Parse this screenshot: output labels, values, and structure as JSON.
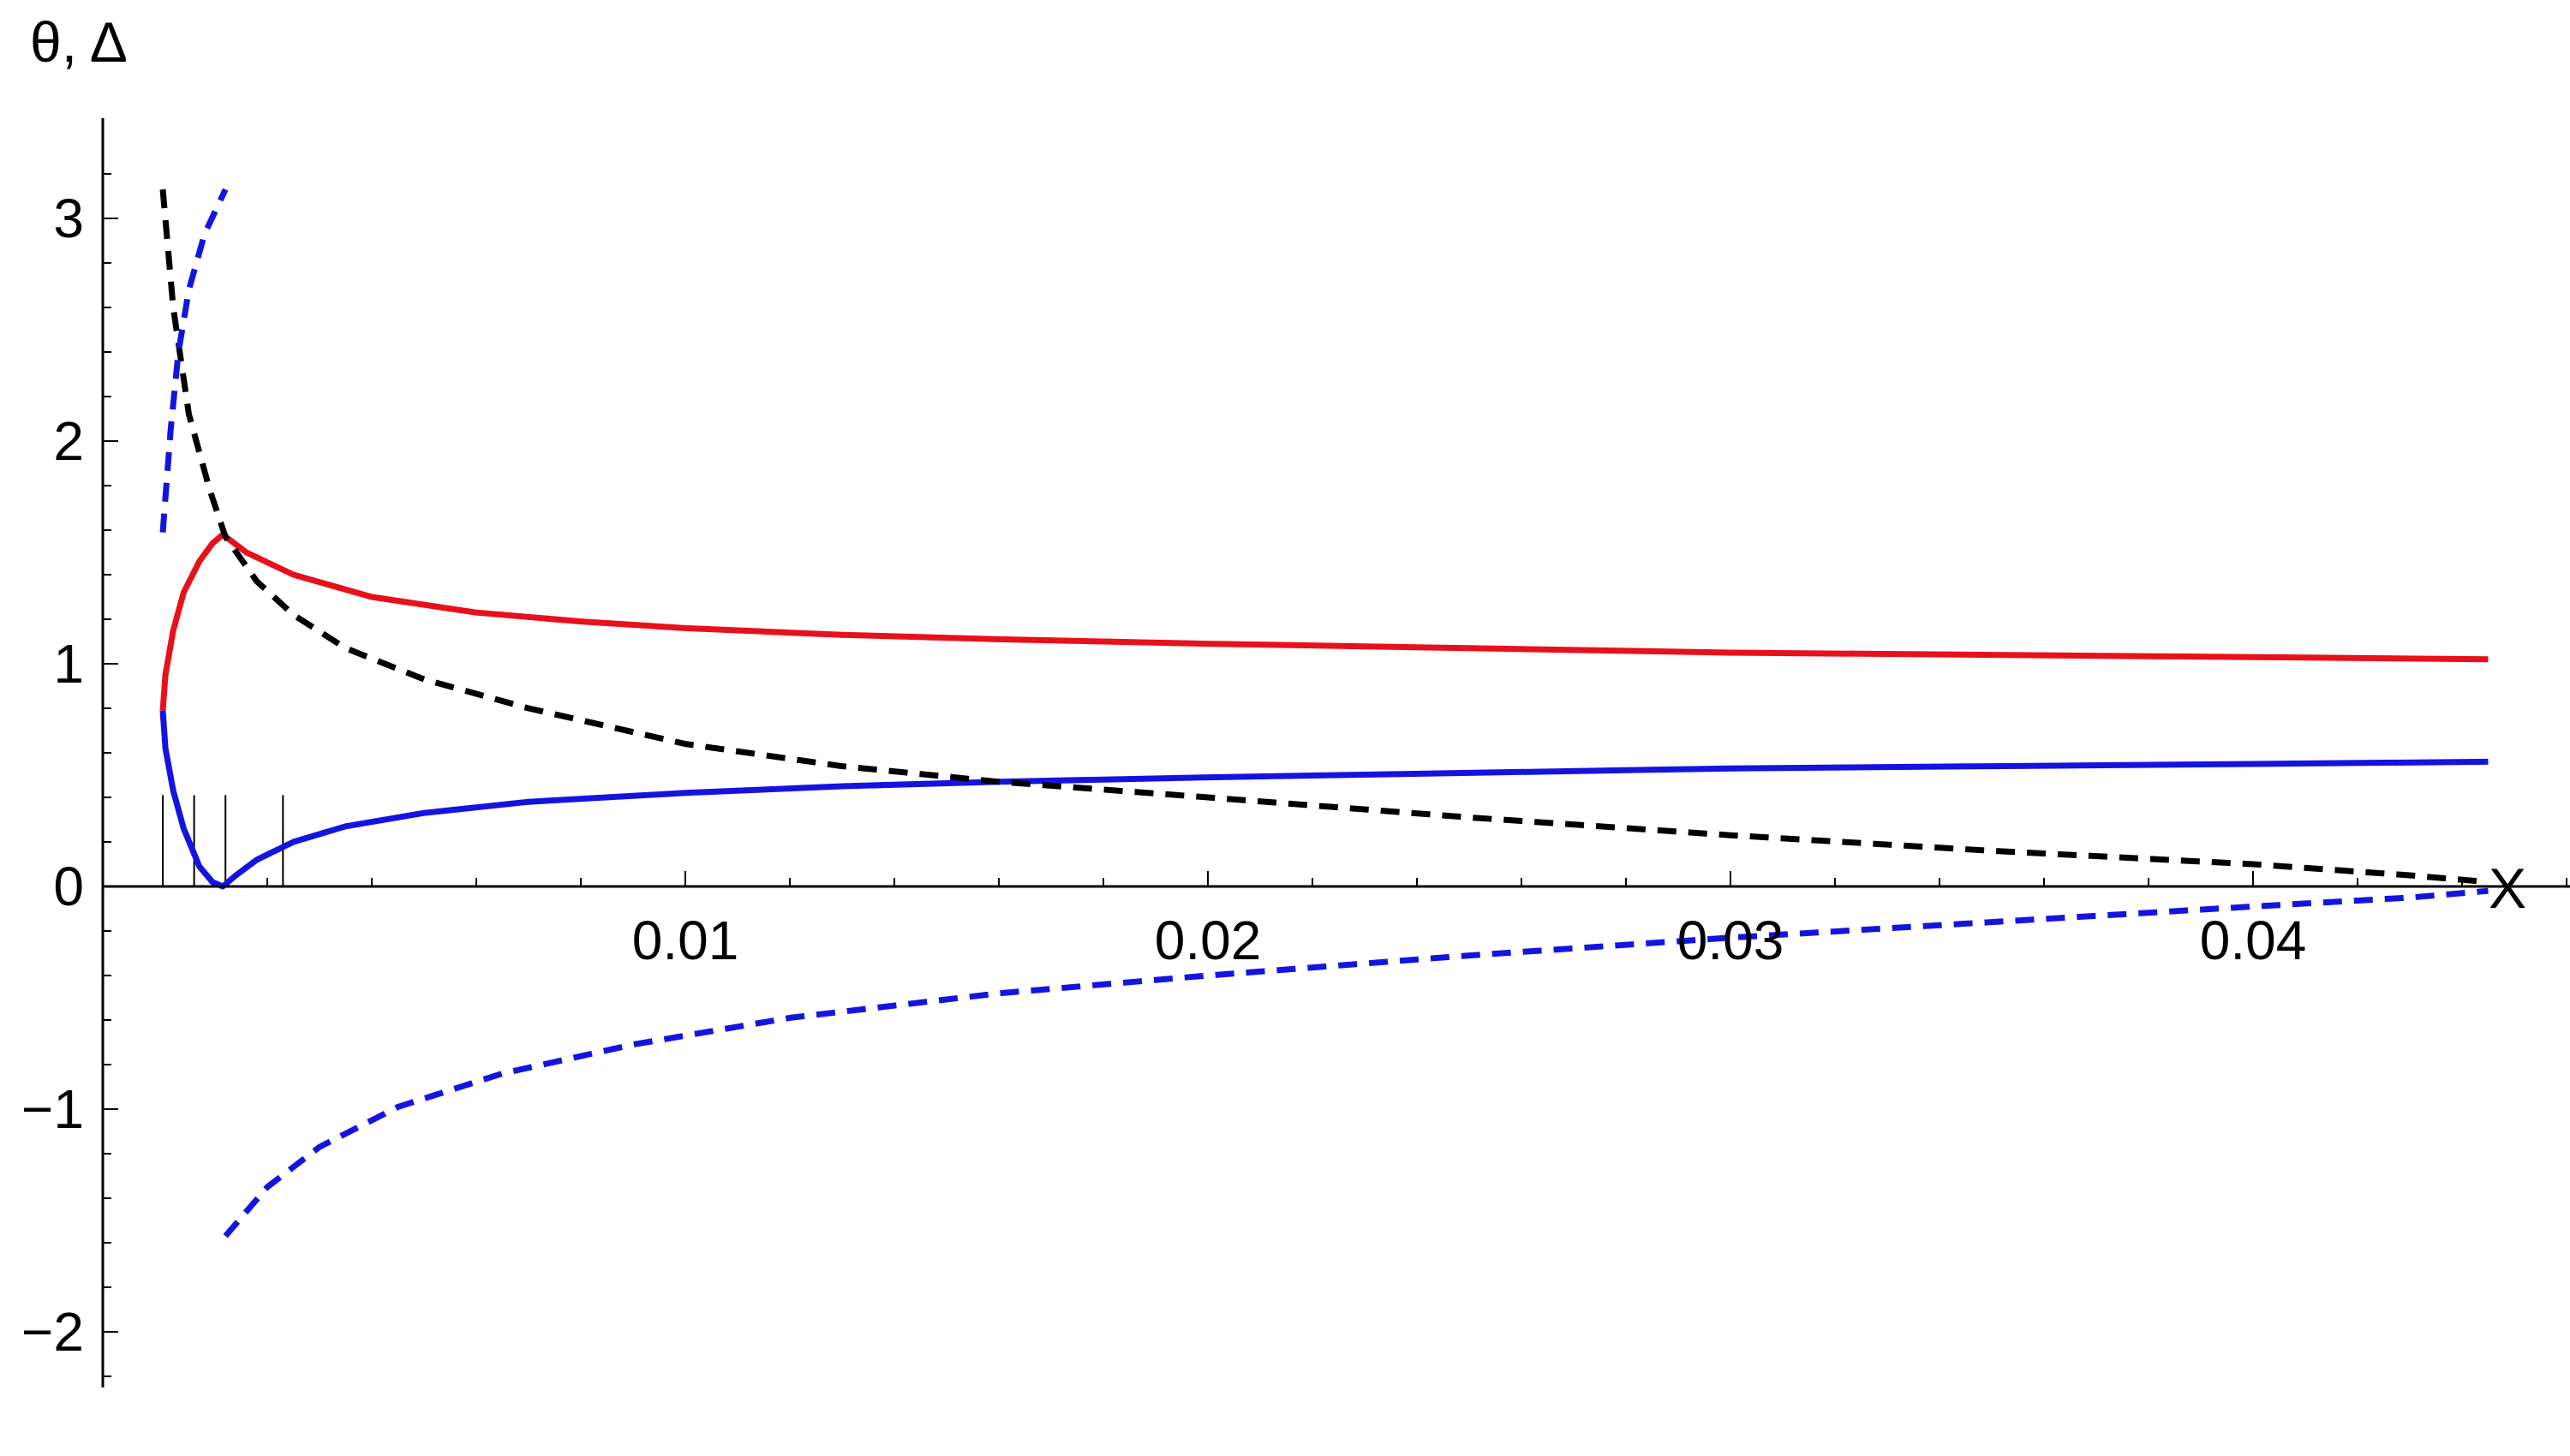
{
  "chart_data": {
    "type": "line",
    "title": "",
    "xlabel": "X",
    "ylabel": "θ, Δ",
    "xlim": [
      -0.0012,
      0.0466
    ],
    "ylim": [
      -2.25,
      3.45
    ],
    "x_ticks": [
      0.01,
      0.02,
      0.03,
      0.04
    ],
    "x_tick_labels": [
      "0.01",
      "0.02",
      "0.03",
      "0.04"
    ],
    "y_ticks": [
      -2,
      -1,
      0,
      1,
      2,
      3
    ],
    "y_tick_labels": [
      "−2",
      "−1",
      "0",
      "1",
      "2",
      "3"
    ],
    "grid": false,
    "legend": "none",
    "series": [
      {
        "color": "#e8101a",
        "style": "solid",
        "x": [
          0.0,
          5e-05,
          0.0002,
          0.0004,
          0.0007,
          0.00095,
          0.00115,
          0.0016,
          0.0025,
          0.004,
          0.006,
          0.008,
          0.01,
          0.013,
          0.016,
          0.02,
          0.025,
          0.03,
          0.035,
          0.04,
          0.0445
        ],
        "y": [
          0.79,
          0.95,
          1.15,
          1.32,
          1.46,
          1.54,
          1.58,
          1.5,
          1.4,
          1.3,
          1.23,
          1.19,
          1.16,
          1.13,
          1.11,
          1.09,
          1.07,
          1.05,
          1.04,
          1.03,
          1.02
        ]
      },
      {
        "color": "#1414e0",
        "style": "solid",
        "x": [
          0.0,
          5e-05,
          0.0002,
          0.0004,
          0.0007,
          0.00095,
          0.00115,
          0.0014,
          0.0018,
          0.0025,
          0.0035,
          0.005,
          0.007,
          0.01,
          0.013,
          0.016,
          0.02,
          0.025,
          0.03,
          0.035,
          0.04,
          0.0445
        ],
        "y": [
          0.79,
          0.62,
          0.43,
          0.26,
          0.09,
          0.02,
          0.0,
          0.05,
          0.12,
          0.2,
          0.27,
          0.33,
          0.38,
          0.42,
          0.45,
          0.47,
          0.49,
          0.51,
          0.53,
          0.54,
          0.55,
          0.56
        ]
      },
      {
        "color": "#000000",
        "style": "dashed",
        "x": [
          0.0,
          0.0002,
          0.0005,
          0.0009,
          0.0012,
          0.0018,
          0.0025,
          0.0035,
          0.005,
          0.007,
          0.01,
          0.013,
          0.016,
          0.02,
          0.025,
          0.03,
          0.035,
          0.04,
          0.043,
          0.0445
        ],
        "y": [
          3.13,
          2.6,
          2.12,
          1.78,
          1.57,
          1.37,
          1.22,
          1.07,
          0.93,
          0.8,
          0.64,
          0.54,
          0.47,
          0.4,
          0.31,
          0.23,
          0.16,
          0.1,
          0.05,
          0.02
        ]
      },
      {
        "color": "#1414e0",
        "style": "dashed",
        "x": [
          0.0,
          0.00015,
          0.0003,
          0.0005,
          0.0008,
          0.0012
        ],
        "y": [
          1.59,
          2.05,
          2.4,
          2.68,
          2.93,
          3.13
        ]
      },
      {
        "color": "#1414e0",
        "style": "dashed",
        "x": [
          0.0012,
          0.002,
          0.003,
          0.0045,
          0.0065,
          0.009,
          0.012,
          0.016,
          0.02,
          0.025,
          0.03,
          0.035,
          0.04,
          0.043,
          0.0445
        ],
        "y": [
          -1.57,
          -1.35,
          -1.17,
          -0.99,
          -0.84,
          -0.71,
          -0.59,
          -0.48,
          -0.4,
          -0.31,
          -0.23,
          -0.16,
          -0.09,
          -0.05,
          -0.02
        ]
      }
    ],
    "vertical_markers": {
      "x": [
        0.0,
        0.0006,
        0.0012,
        0.0023
      ],
      "y_top": 0.41,
      "color": "#000000"
    }
  }
}
